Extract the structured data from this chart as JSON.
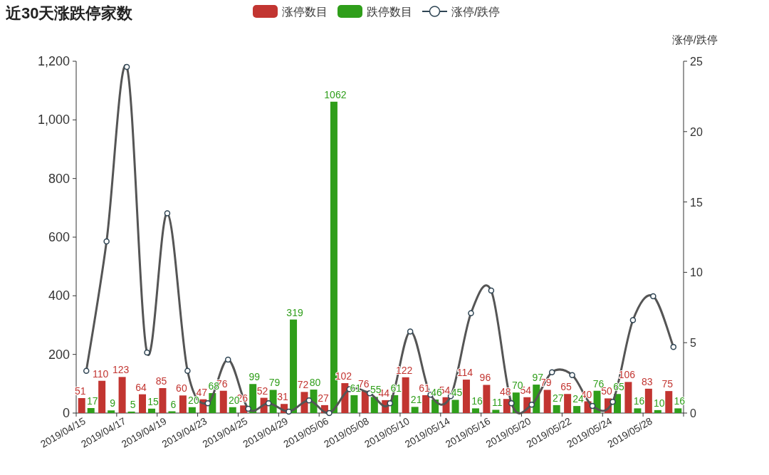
{
  "chart_data": {
    "type": "bar",
    "title": "近30天涨跌停家数",
    "y2label": "涨停/跌停",
    "legend": "top",
    "marker": "circle",
    "categories": [
      "2019/04/15",
      null,
      "2019/04/17",
      null,
      "2019/04/19",
      null,
      "2019/04/23",
      null,
      "2019/04/25",
      null,
      "2019/04/29",
      null,
      "2019/05/06",
      null,
      "2019/05/08",
      null,
      "2019/05/10",
      null,
      "2019/05/14",
      null,
      "2019/05/16",
      null,
      "2019/05/20",
      null,
      "2019/05/22",
      null,
      "2019/05/24",
      null,
      "2019/05/28",
      null
    ],
    "ylim": [
      0,
      1200
    ],
    "yticks": [
      0,
      200,
      400,
      600,
      800,
      {
        "value": 1000,
        "label": "1,000"
      },
      {
        "value": 1200,
        "label": "1,200"
      }
    ],
    "y2lim": [
      0,
      25
    ],
    "y2ticks": [
      0,
      5,
      10,
      15,
      20,
      25
    ],
    "series": [
      {
        "name": "涨停数目",
        "color": "#c23531",
        "data_labels": true,
        "values": [
          51,
          110,
          123,
          64,
          85,
          60,
          47,
          76,
          26,
          52,
          31,
          72,
          27,
          102,
          76,
          44,
          122,
          61,
          54,
          114,
          96,
          48,
          54,
          79,
          65,
          40,
          50,
          106,
          83,
          75
        ]
      },
      {
        "name": "跌停数目",
        "color": "#2f9e1a",
        "data_labels": true,
        "values": [
          17,
          9,
          5,
          15,
          6,
          20,
          68,
          20,
          99,
          79,
          319,
          80,
          1062,
          61,
          55,
          61,
          21,
          46,
          45,
          16,
          11,
          70,
          97,
          27,
          24,
          76,
          65,
          16,
          10,
          16
        ]
      },
      {
        "name": "涨停/跌停",
        "type": "line",
        "axis": "y2",
        "color": "#555555",
        "values": [
          3.0,
          12.2,
          24.6,
          4.3,
          14.2,
          3.0,
          0.7,
          3.8,
          0.3,
          0.7,
          0.1,
          0.9,
          0.0,
          1.7,
          1.4,
          0.7,
          5.8,
          1.3,
          1.2,
          7.1,
          8.7,
          0.7,
          0.6,
          2.9,
          2.7,
          0.5,
          0.8,
          6.6,
          8.3,
          4.7
        ]
      }
    ]
  }
}
